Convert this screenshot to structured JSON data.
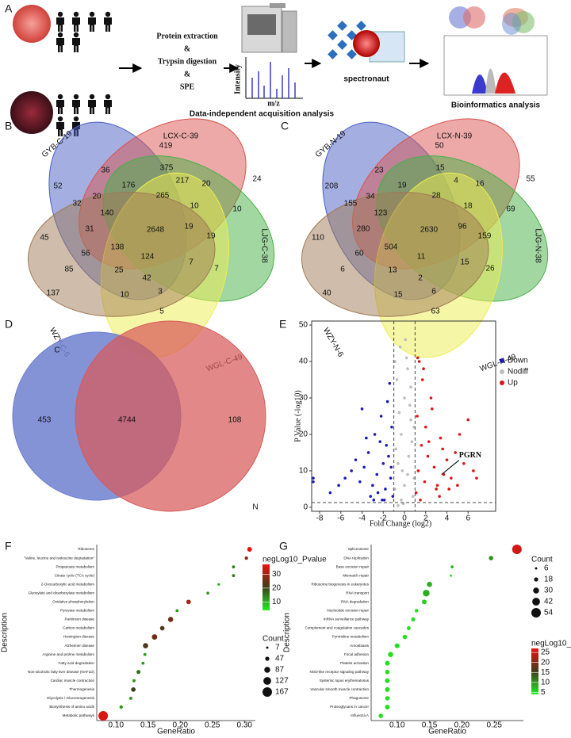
{
  "figure": {
    "panel_labels": [
      "A",
      "B",
      "C",
      "D",
      "E",
      "F",
      "G"
    ],
    "A": {
      "steps": [
        "Protein extraction",
        "&",
        "Trypsin digestion",
        "&",
        "SPE"
      ],
      "y_axis": "Intensity",
      "x_axis": "m/z",
      "dia": "Data-independent acquisition analysis",
      "software": "spectronaut",
      "bio": "Bioinformatics analysis"
    },
    "B": {
      "sets": [
        "GYB-C-19",
        "LCX-C-39",
        "LJG-C-38",
        "WGL-C-49",
        "WZY-C-6"
      ],
      "counts": [
        419,
        36,
        375,
        52,
        176,
        217,
        20,
        20,
        265,
        24,
        32,
        10,
        10,
        140,
        31,
        2648,
        19,
        19,
        45,
        138,
        56,
        124,
        7,
        85,
        25,
        7,
        42,
        137,
        3,
        10,
        5
      ]
    },
    "C": {
      "sets": [
        "GYB-N-19",
        "LCX-N-39",
        "LJG-N-38",
        "WGL-N-49",
        "WZY-N-6"
      ],
      "counts": [
        50,
        23,
        15,
        208,
        19,
        4,
        16,
        34,
        28,
        55,
        155,
        18,
        69,
        123,
        280,
        2630,
        96,
        159,
        110,
        504,
        60,
        11,
        15,
        6,
        13,
        26,
        2,
        40,
        6,
        15,
        63
      ]
    },
    "D": {
      "sets": [
        "C",
        "N"
      ],
      "counts": [
        453,
        4744,
        108
      ]
    }
  },
  "chart_data": [
    {
      "type": "scatter",
      "xlabel": "Fold Change (log2)",
      "ylabel": "P Value (-log10)",
      "xlim": [
        -8.75,
        8.6
      ],
      "ylim": [
        -1.1,
        51.1
      ],
      "xticks": [
        -8,
        -6,
        -4,
        -2,
        0,
        2,
        4,
        6
      ],
      "yticks": [
        0,
        10,
        20,
        30,
        40,
        50
      ],
      "vlines": [
        -1,
        1
      ],
      "hline": 1.3,
      "legend": "top-right",
      "annotation": {
        "text": "PGRN",
        "x": 3.5,
        "y": 9
      },
      "series": [
        {
          "name": "Down",
          "color": "#1c1cb4",
          "x": [
            -1.1,
            -1.3,
            -1.5,
            -1.2,
            -1.8,
            -2.0,
            -2.3,
            -1.6,
            -2.6,
            -3.0,
            -2.2,
            -3.4,
            -1.4,
            -2.8,
            -3.8,
            -1.9,
            -4.2,
            -2.5,
            -4.6,
            -3.2,
            -5.0,
            -1.7,
            -5.6,
            -2.9,
            -6.2,
            -3.6,
            -7.0,
            -1.25,
            -2.1,
            -8.6,
            -8.6,
            -4.0
          ],
          "values": [
            3,
            8,
            14,
            22,
            5,
            12,
            18,
            29,
            9,
            6,
            25,
            15,
            34,
            20,
            11,
            2,
            7,
            4,
            13,
            3,
            10,
            17,
            8,
            2,
            6,
            19,
            4,
            11,
            2,
            8,
            7,
            27
          ]
        },
        {
          "name": "Nodiff",
          "color": "#bdbdbd",
          "x": [
            -0.9,
            -0.6,
            -0.3,
            0,
            0.3,
            0.6,
            0.9,
            -0.8,
            -0.4,
            0.1,
            0.5,
            0.8,
            -0.7,
            -0.2,
            0.2,
            0.7,
            -0.5,
            0.4,
            -0.1,
            0.6,
            -0.9,
            0.9,
            0.0,
            -0.3,
            0.3,
            -0.6
          ],
          "values": [
            5,
            12,
            20,
            30,
            38,
            24,
            8,
            16,
            44,
            46,
            28,
            3,
            35,
            10,
            41,
            18,
            26,
            14,
            1,
            33,
            40,
            22,
            6,
            2,
            9,
            0.5
          ]
        },
        {
          "name": "Up",
          "color": "#e01414",
          "x": [
            1.1,
            1.3,
            1.6,
            1.2,
            1.9,
            2.2,
            2.5,
            1.4,
            2.8,
            3.1,
            1.7,
            3.4,
            2.0,
            3.7,
            4.0,
            1.5,
            4.4,
            2.6,
            4.8,
            3.0,
            5.2,
            1.8,
            5.6,
            3.3,
            6.0,
            2.3,
            6.5,
            4.2,
            6.8,
            1.25,
            3.6,
            5.0
          ],
          "values": [
            4,
            10,
            17,
            25,
            7,
            14,
            30,
            40,
            11,
            6,
            35,
            19,
            22,
            9,
            13,
            2,
            8,
            27,
            15,
            5,
            20,
            38,
            12,
            3,
            24,
            18,
            10,
            5,
            8,
            41,
            16,
            6
          ]
        }
      ]
    },
    {
      "type": "dot",
      "xlabel": "GeneRatio",
      "ylabel": "Description",
      "categories": [
        "Ribosome",
        "\"Valine, leucine and isoleucine degradation\"",
        "Propanoate metabolism",
        "Citrate cycle (TCA cycle)",
        "2-Oxocarboxylic acid metabolism",
        "Glyoxylate and dicarboxylate metabolism",
        "Oxidative phosphorylation",
        "Pyruvate metabolism",
        "Parkinson disease",
        "Carbon metabolism",
        "Huntington disease",
        "Alzheimer disease",
        "Arginine and proline metabolism",
        "Fatty acid degradation",
        "Non-alcoholic fatty liver disease (NAFLD)",
        "Cardiac muscle contraction",
        "Thermogenesis",
        "Glycolysis / Gluconeogenesis",
        "Biosynthesis of amino acids",
        "Metabolic pathways"
      ],
      "values": [
        0.308,
        0.303,
        0.283,
        0.283,
        0.26,
        0.243,
        0.213,
        0.195,
        0.185,
        0.172,
        0.16,
        0.146,
        0.145,
        0.142,
        0.135,
        0.128,
        0.127,
        0.123,
        0.108,
        0.08
      ],
      "count": [
        60,
        30,
        20,
        22,
        12,
        20,
        55,
        22,
        70,
        55,
        75,
        70,
        20,
        22,
        45,
        25,
        55,
        25,
        30,
        167
      ],
      "pvalue": [
        36,
        28,
        15,
        15,
        10,
        12,
        30,
        12,
        25,
        22,
        25,
        22,
        12,
        12,
        16,
        12,
        20,
        12,
        12,
        35
      ],
      "xlim": [
        0.07,
        0.317
      ],
      "xticks": [
        {
          "value": 0.1,
          "label": "0.10"
        },
        0.15,
        {
          "value": 0.2,
          "label": "0.20"
        },
        0.25,
        {
          "value": 0.3,
          "label": "0.30"
        }
      ],
      "color_legend": {
        "title": "negLog10_Pvalue",
        "lim": [
          4,
          37
        ],
        "ticks": [
          10,
          20,
          30
        ],
        "colors": [
          "#22ee22",
          "#3d3d1a",
          "#ee1111"
        ]
      },
      "size_legend": {
        "title": "Count",
        "ticks": [
          7,
          47,
          87,
          127,
          167
        ]
      }
    },
    {
      "type": "dot",
      "xlabel": "GeneRatio",
      "ylabel": "Description",
      "categories": [
        "Spliceosome",
        "DNA replication",
        "Base excision repair",
        "Mismatch repair",
        "Ribosome biogenesis in eukaryotes",
        "RNA transport",
        "RNA degradation",
        "Nucleotide excision repair",
        "mRNA surveillance pathway",
        "Complement and coagulation cascades",
        "Pyrimidine metabolism",
        "Amoebiasis",
        "Focal adhesion",
        "Platelet activation",
        "NOD-like receptor signaling pathway",
        "Systemic lupus erythematosus",
        "Vascular smooth muscle contraction",
        "Phagosome",
        "Proteoglycans in cancer",
        "Influenza A"
      ],
      "values": [
        0.285,
        0.245,
        0.185,
        0.183,
        0.15,
        0.145,
        0.142,
        0.13,
        0.125,
        0.118,
        0.112,
        0.1,
        0.09,
        0.085,
        0.085,
        0.085,
        0.085,
        0.085,
        0.085,
        0.075
      ],
      "count": [
        54,
        20,
        10,
        6,
        25,
        35,
        22,
        14,
        18,
        16,
        20,
        22,
        25,
        22,
        20,
        22,
        22,
        20,
        22,
        20
      ],
      "pvalue": [
        25,
        10,
        8,
        5,
        8,
        8,
        6,
        5,
        5,
        5,
        5,
        5,
        5,
        5,
        5,
        5,
        5,
        5,
        5,
        5
      ],
      "xlim": [
        0.06,
        0.295
      ],
      "xticks": [
        {
          "value": 0.1,
          "label": "0.10"
        },
        0.15,
        {
          "value": 0.2,
          "label": "0.20"
        },
        0.25
      ],
      "size_legend": {
        "title": "Count",
        "ticks": [
          6,
          18,
          30,
          42,
          54
        ]
      },
      "color_legend": {
        "title": "negLog10_Pvalue",
        "lim": [
          4,
          27
        ],
        "ticks": [
          5,
          10,
          15,
          20,
          25
        ],
        "colors": [
          "#22ee22",
          "#3d3d1a",
          "#ee1111"
        ]
      }
    }
  ]
}
